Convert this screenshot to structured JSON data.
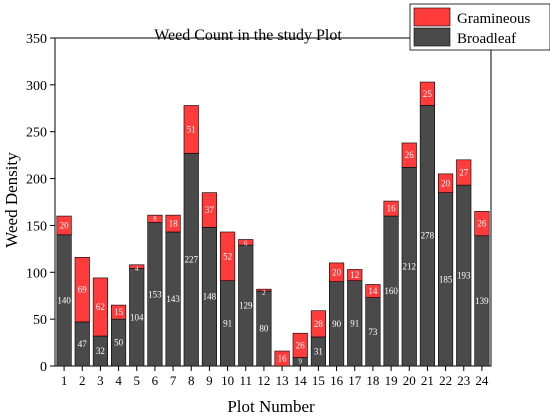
{
  "chart_data": {
    "type": "bar",
    "stacked": true,
    "title": "Weed Count in the study Plot",
    "xlabel": "Plot Number",
    "ylabel": "Weed Density",
    "ylim": [
      0,
      350
    ],
    "yticks": [
      0,
      50,
      100,
      150,
      200,
      250,
      300,
      350
    ],
    "grid": false,
    "legend_position": "top-right",
    "categories": [
      "1",
      "2",
      "3",
      "4",
      "5",
      "6",
      "7",
      "8",
      "9",
      "10",
      "11",
      "12",
      "13",
      "14",
      "15",
      "16",
      "17",
      "18",
      "19",
      "20",
      "21",
      "22",
      "23",
      "24"
    ],
    "series": [
      {
        "name": "Broadleaf",
        "color": "#4a4a4a",
        "values": [
          140,
          47,
          32,
          50,
          104,
          153,
          143,
          227,
          148,
          91,
          129,
          80,
          0,
          9,
          31,
          90,
          91,
          73,
          160,
          212,
          278,
          185,
          193,
          139
        ],
        "labels": [
          "140",
          "47",
          "32",
          "50",
          "104",
          "153",
          "143",
          "227",
          "148",
          "91",
          "129",
          "80",
          "",
          "9",
          "31",
          "90",
          "91",
          "73",
          "160",
          "212",
          "278",
          "185",
          "193",
          "139"
        ]
      },
      {
        "name": "Gramineous",
        "color": "#ff3b3b",
        "values": [
          20,
          69,
          62,
          15,
          4,
          8,
          18,
          51,
          37,
          52,
          6,
          2,
          16,
          26,
          28,
          20,
          12,
          14,
          16,
          26,
          25,
          20,
          27,
          26
        ],
        "labels": [
          "20",
          "69",
          "62",
          "15",
          "4",
          "8",
          "18",
          "51",
          "37",
          "52",
          "6",
          "2",
          "16",
          "26",
          "28",
          "20",
          "12",
          "14",
          "16",
          "26",
          "25",
          "20",
          "27",
          "26"
        ]
      }
    ]
  }
}
